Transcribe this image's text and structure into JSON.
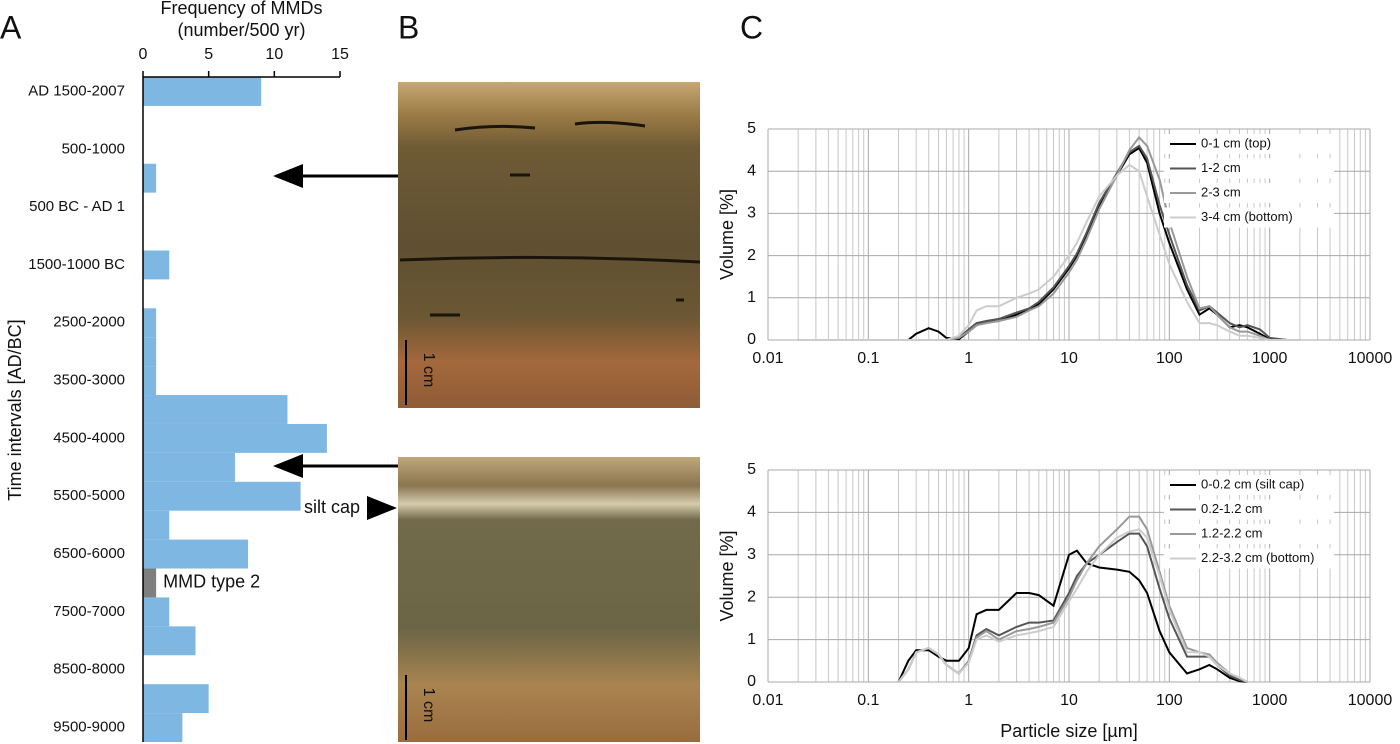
{
  "chart_data": [
    {
      "type": "bar",
      "orientation": "horizontal",
      "panel": "A",
      "xlabel": [
        "Frequency of MMDs",
        "(number/500 yr)"
      ],
      "ylabel": "Time intervals [AD/BC]",
      "categories": [
        "AD 1500-2007",
        null,
        "500-1000",
        null,
        "500 BC - AD 1",
        null,
        "1500-1000 BC",
        null,
        "2500-2000",
        null,
        "3500-3000",
        null,
        "4500-4000",
        null,
        "5500-5000",
        null,
        "6500-6000",
        null,
        "7500-7000",
        null,
        "8500-8000",
        null,
        "9500-9000"
      ],
      "values": [
        9,
        0,
        0,
        1,
        0,
        0,
        2,
        0,
        1,
        1,
        1,
        11,
        14,
        7,
        12,
        2,
        8,
        1,
        2,
        4,
        0,
        5,
        3
      ],
      "colors": [
        "#7fb7e3",
        "#7fb7e3",
        "#7fb7e3",
        "#7fb7e3",
        "#7fb7e3",
        "#7fb7e3",
        "#7fb7e3",
        "#7fb7e3",
        "#7fb7e3",
        "#7fb7e3",
        "#7fb7e3",
        "#7fb7e3",
        "#7fb7e3",
        "#7fb7e3",
        "#7fb7e3",
        "#7fb7e3",
        "#7fb7e3",
        "#7f7f7f",
        "#7fb7e3",
        "#7fb7e3",
        "#7fb7e3",
        "#7fb7e3",
        "#7fb7e3"
      ],
      "annotations": [
        "MMD type 2"
      ],
      "xlim": [
        0,
        15
      ],
      "xticks": [
        0,
        5,
        10,
        15
      ],
      "xaxis_position": "top"
    },
    {
      "type": "line",
      "panel": "C",
      "xscale": "log",
      "xlim": [
        0.01,
        10000
      ],
      "xticks": [
        0.01,
        0.1,
        1,
        10,
        100,
        1000,
        10000
      ],
      "ylim": [
        0,
        5
      ],
      "yticks": [
        0,
        1,
        2,
        3,
        4,
        5
      ],
      "ylabel": "Volume [%]",
      "grid": true,
      "minor_grid": true,
      "legend": "upper right",
      "x": [
        0.02,
        0.25,
        0.3,
        0.4,
        0.5,
        0.6,
        0.8,
        1,
        1.2,
        1.5,
        2,
        3,
        4,
        5,
        7,
        10,
        12,
        15,
        20,
        30,
        40,
        50,
        60,
        80,
        100,
        150,
        200,
        250,
        300,
        400,
        500,
        600,
        800,
        1000,
        1500,
        2000
      ],
      "series": [
        {
          "name": "0-1 cm (top)",
          "color": "#000000",
          "values": [
            0,
            0,
            0.15,
            0.28,
            0.2,
            0.05,
            0.02,
            0.2,
            0.35,
            0.42,
            0.45,
            0.6,
            0.72,
            0.85,
            1.2,
            1.7,
            2.0,
            2.5,
            3.2,
            3.9,
            4.4,
            4.55,
            4.2,
            3.0,
            2.3,
            1.2,
            0.6,
            0.75,
            0.6,
            0.3,
            0.35,
            0.3,
            0.15,
            0.02,
            0,
            0
          ]
        },
        {
          "name": "1-2 cm",
          "color": "#555555",
          "values": [
            0,
            0,
            0,
            0,
            0,
            0,
            0.05,
            0.25,
            0.4,
            0.45,
            0.5,
            0.65,
            0.75,
            0.9,
            1.25,
            1.75,
            2.05,
            2.55,
            3.25,
            3.95,
            4.45,
            4.6,
            4.3,
            3.2,
            2.5,
            1.3,
            0.7,
            0.8,
            0.65,
            0.4,
            0.3,
            0.35,
            0.25,
            0.05,
            0,
            0
          ]
        },
        {
          "name": "2-3 cm",
          "color": "#999999",
          "values": [
            0,
            0,
            0,
            0,
            0,
            0,
            0.05,
            0.2,
            0.35,
            0.4,
            0.45,
            0.55,
            0.7,
            0.8,
            1.1,
            1.6,
            1.9,
            2.4,
            3.1,
            3.9,
            4.5,
            4.8,
            4.6,
            3.8,
            2.8,
            1.5,
            0.75,
            0.8,
            0.6,
            0.3,
            0.2,
            0.2,
            0.1,
            0,
            0,
            0
          ]
        },
        {
          "name": "3-4 cm (bottom)",
          "color": "#cccccc",
          "values": [
            0,
            0,
            0,
            0,
            0,
            0,
            0.1,
            0.35,
            0.7,
            0.8,
            0.8,
            1.0,
            1.1,
            1.2,
            1.5,
            2.0,
            2.3,
            2.8,
            3.4,
            3.9,
            4.15,
            4.0,
            3.4,
            2.5,
            1.8,
            0.9,
            0.4,
            0.4,
            0.35,
            0.2,
            0.1,
            0.1,
            0.05,
            0,
            0,
            0
          ]
        }
      ]
    },
    {
      "type": "line",
      "xscale": "log",
      "xlim": [
        0.01,
        10000
      ],
      "xticks": [
        0.01,
        0.1,
        1,
        10,
        100,
        1000,
        10000
      ],
      "ylim": [
        0,
        5
      ],
      "yticks": [
        0,
        1,
        2,
        3,
        4,
        5
      ],
      "ylabel": "Volume [%]",
      "xlabel": "Particle size [µm]",
      "grid": true,
      "minor_grid": true,
      "legend": "upper right",
      "x": [
        0.2,
        0.25,
        0.3,
        0.4,
        0.5,
        0.6,
        0.8,
        1,
        1.2,
        1.5,
        2,
        3,
        4,
        5,
        7,
        10,
        12,
        15,
        20,
        30,
        40,
        50,
        60,
        80,
        100,
        150,
        200,
        250,
        300,
        400,
        500,
        600
      ],
      "series": [
        {
          "name": "0-0.2 cm (silt cap)",
          "color": "#000000",
          "values": [
            0,
            0.5,
            0.75,
            0.75,
            0.6,
            0.5,
            0.5,
            0.8,
            1.6,
            1.7,
            1.7,
            2.1,
            2.1,
            2.05,
            1.8,
            3.0,
            3.1,
            2.8,
            2.7,
            2.65,
            2.6,
            2.4,
            2.1,
            1.2,
            0.7,
            0.2,
            0.3,
            0.4,
            0.3,
            0.1,
            0.02,
            0
          ]
        },
        {
          "name": "0.2-1.2 cm",
          "color": "#555555",
          "values": [
            0,
            0.3,
            0.7,
            0.8,
            0.65,
            0.4,
            0.2,
            0.5,
            1.1,
            1.25,
            1.1,
            1.3,
            1.4,
            1.4,
            1.45,
            2.1,
            2.5,
            2.8,
            3.0,
            3.3,
            3.5,
            3.5,
            3.2,
            2.2,
            1.5,
            0.6,
            0.6,
            0.6,
            0.4,
            0.15,
            0.05,
            0
          ]
        },
        {
          "name": "1.2-2.2 cm",
          "color": "#999999",
          "values": [
            0,
            0.3,
            0.7,
            0.8,
            0.65,
            0.4,
            0.2,
            0.5,
            1.05,
            1.2,
            1.0,
            1.2,
            1.25,
            1.3,
            1.4,
            2.0,
            2.4,
            2.8,
            3.2,
            3.6,
            3.9,
            3.9,
            3.6,
            2.6,
            1.8,
            0.8,
            0.7,
            0.65,
            0.45,
            0.2,
            0.1,
            0
          ]
        },
        {
          "name": "2.2-3.2 cm (bottom)",
          "color": "#cccccc",
          "values": [
            0,
            0.3,
            0.7,
            0.8,
            0.65,
            0.4,
            0.2,
            0.45,
            1.0,
            1.1,
            0.95,
            1.1,
            1.15,
            1.2,
            1.3,
            1.9,
            2.2,
            2.6,
            3.0,
            3.4,
            3.55,
            3.6,
            3.4,
            2.5,
            1.7,
            0.7,
            0.7,
            0.6,
            0.4,
            0.2,
            0.1,
            0
          ]
        }
      ]
    }
  ],
  "photos": {
    "panel": "B",
    "scale_labels": [
      "1 cm",
      "1 cm"
    ],
    "annotation": "silt cap"
  }
}
